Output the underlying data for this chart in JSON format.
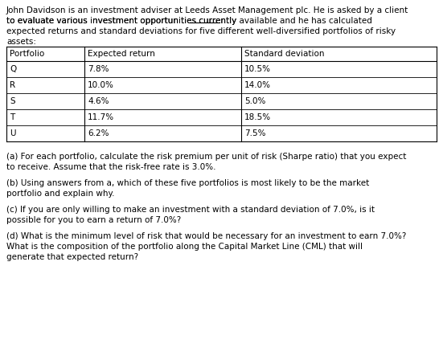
{
  "bg_color": "#ffffff",
  "text_color": "#000000",
  "font_size": 7.5,
  "table_font_size": 7.5,
  "table_headers": [
    "Portfolio",
    "Expected return",
    "Standard deviation"
  ],
  "table_rows": [
    [
      "Q",
      "7.8%",
      "10.5%"
    ],
    [
      "R",
      "10.0%",
      "14.0%"
    ],
    [
      "S",
      "4.6%",
      "5.0%"
    ],
    [
      "T",
      "11.7%",
      "18.5%"
    ],
    [
      "U",
      "6.2%",
      "7.5%"
    ]
  ],
  "intro_line1": "John Davidson is an investment adviser at Leeds Asset Management plc. He is asked by a client",
  "intro_line2a": "to evaluate various investment opportunities currently ",
  "intro_line2b": "available",
  "intro_line2c": " and he has calculated",
  "intro_line3": "expected returns and standard deviations for five different well-diversified portfolios of risky",
  "intro_line4": "assets:",
  "qa_line1": "(a) For each portfolio, calculate the risk premium per unit of risk (Sharpe ratio) that you expect",
  "qa_line2": "to receive. Assume that the risk-free rate is 3.0%.",
  "qb_line1": "(b) Using answers from a, which of these five portfolios is most likely to be the market",
  "qb_line2": "portfolio and explain why.",
  "qc_line1": "(c) If you are only willing to make an investment with a standard deviation of 7.0%, is it",
  "qc_line2": "possible for you to earn a return of 7.0%?",
  "qd_line1": "(d) What is the minimum level of risk that would be necessary for an investment to earn 7.0%?",
  "qd_line2": "What is the composition of the portfolio along the Capital Market Line (CML) that will",
  "qd_line3": "generate that expected return?"
}
